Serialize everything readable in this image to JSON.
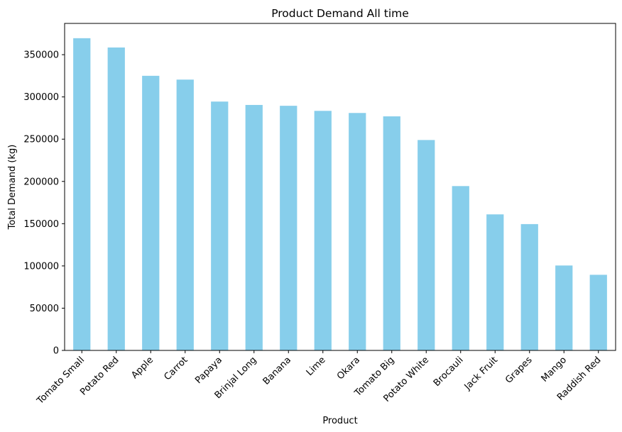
{
  "chart_data": {
    "type": "bar",
    "title": "Product Demand All time",
    "xlabel": "Product",
    "ylabel": "Total Demand (kg)",
    "ylim": [
      0,
      387000
    ],
    "yticks": [
      0,
      50000,
      100000,
      150000,
      200000,
      250000,
      300000,
      350000
    ],
    "ytick_labels": [
      "0",
      "50000",
      "100000",
      "150000",
      "200000",
      "250000",
      "300000",
      "350000"
    ],
    "grid": false,
    "bar_color": "#87ceeb",
    "categories": [
      "Tomato Small",
      "Potato Red",
      "Apple",
      "Carrot",
      "Papaya",
      "Brinjal Long",
      "Banana",
      "Lime",
      "Okara",
      "Tomato Big",
      "Potato White",
      "Brocauli",
      "Jack Fruit",
      "Grapes",
      "Mango",
      "Raddish Red"
    ],
    "values": [
      369500,
      358500,
      325000,
      320500,
      294500,
      290500,
      289500,
      283500,
      281000,
      277000,
      249000,
      194500,
      161000,
      149500,
      100500,
      89500
    ]
  }
}
